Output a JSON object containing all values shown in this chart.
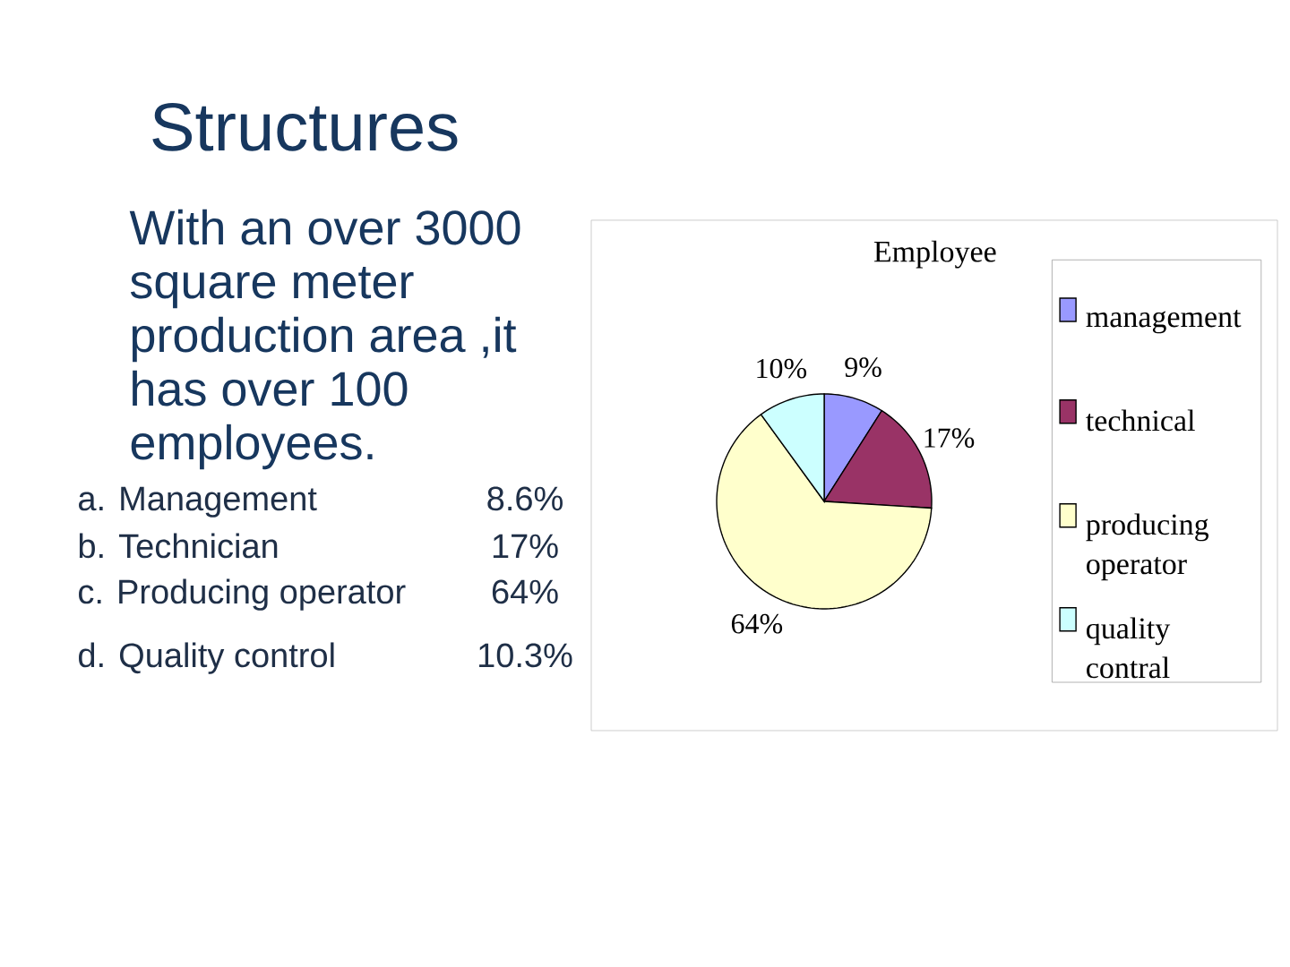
{
  "chart_data": {
    "type": "pie",
    "title": "Employee",
    "categories": [
      "management",
      "technical",
      "producing operator",
      "quality contral"
    ],
    "values": [
      9,
      17,
      64,
      10
    ],
    "colors": [
      "#9999ff",
      "#993366",
      "#ffffcc",
      "#ccffff"
    ],
    "value_labels": [
      "9%",
      "17%",
      "64%",
      "10%"
    ],
    "legend": "right",
    "annotations": [
      "Structures",
      "With an over 3000 square meter production area ,it has over 100 employees.",
      "a. Management",
      "8.6%",
      "b. Technician",
      "17%",
      "c. Producing operator",
      "64%",
      "d. Quality control",
      "10.3%"
    ]
  }
}
